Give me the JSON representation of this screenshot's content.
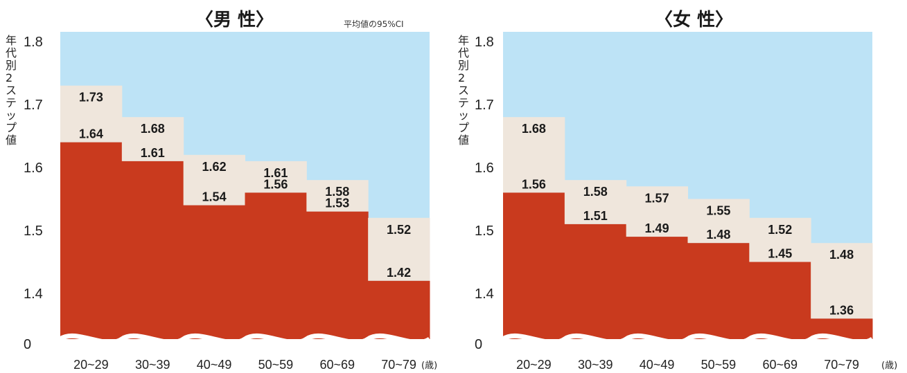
{
  "chart_data": [
    {
      "type": "bar",
      "title": "〈男 性〉",
      "note": "平均値の95%CI",
      "ylabel": "年代別2ステップ値",
      "xunit": "(歳)",
      "categories": [
        "20~29",
        "30~39",
        "40~49",
        "50~59",
        "60~69",
        "70~79"
      ],
      "series": [
        {
          "name": "",
          "values": [
            1.64,
            1.61,
            1.54,
            1.56,
            1.53,
            1.42
          ]
        },
        {
          "name": "",
          "values": [
            1.73,
            1.68,
            1.62,
            1.61,
            1.58,
            1.52
          ]
        }
      ],
      "yticks": [
        "1.8",
        "1.7",
        "1.6",
        "1.5",
        "1.4",
        "0"
      ],
      "ylim": [
        1.35,
        1.8
      ],
      "axis_break": true,
      "colors": {
        "bar": "#c93a1e",
        "ci": "#efe6dc",
        "background": "#bde3f6"
      }
    },
    {
      "type": "bar",
      "title": "〈女 性〉",
      "ylabel": "年代別2ステップ値",
      "xunit": "(歳)",
      "categories": [
        "20~29",
        "30~39",
        "40~49",
        "50~59",
        "60~69",
        "70~79"
      ],
      "series": [
        {
          "name": "",
          "values": [
            1.56,
            1.51,
            1.49,
            1.48,
            1.45,
            1.36
          ]
        },
        {
          "name": "",
          "values": [
            1.68,
            1.58,
            1.57,
            1.55,
            1.52,
            1.48
          ]
        }
      ],
      "yticks": [
        "1.8",
        "1.7",
        "1.6",
        "1.5",
        "1.4",
        "0"
      ],
      "ylim": [
        1.35,
        1.8
      ],
      "axis_break": true,
      "colors": {
        "bar": "#c93a1e",
        "ci": "#efe6dc",
        "background": "#bde3f6"
      }
    }
  ]
}
